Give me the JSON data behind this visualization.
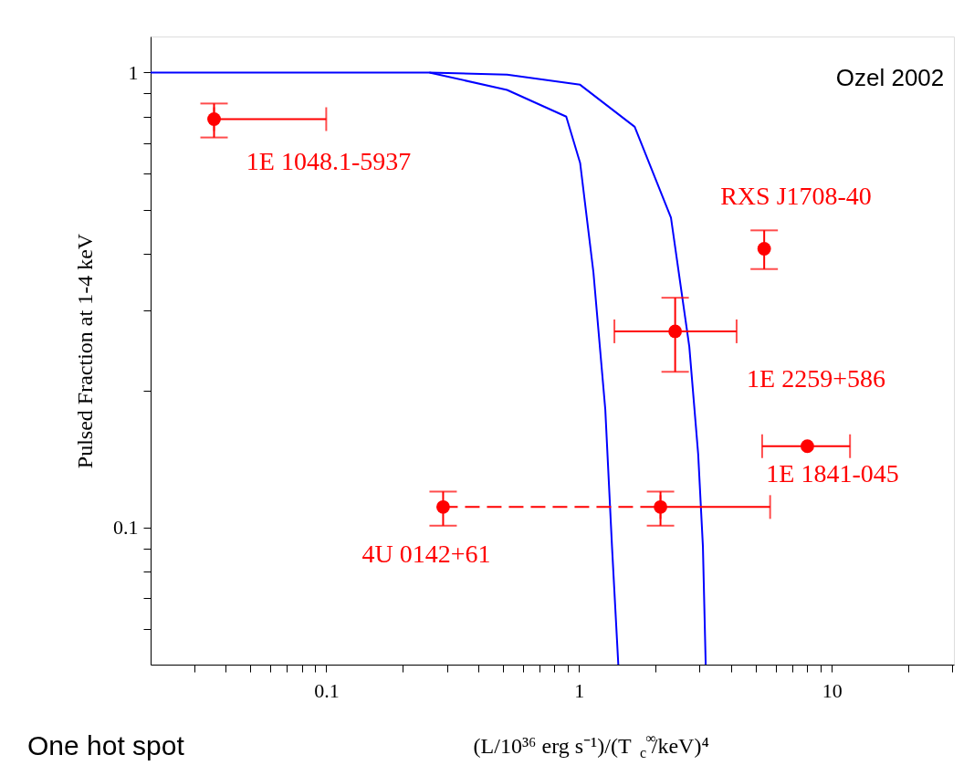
{
  "chart_data": {
    "type": "scatter",
    "xlabel": "(L/10³⁶ erg s⁻¹)/(T$_{c}$$^{∞}$/keV)⁴",
    "ylabel": "Pulsed Fraction at 1-4 keV",
    "log": "xy",
    "grid": false,
    "marker": "circle",
    "xlim": [
      0.0202,
      30.4
    ],
    "ylim": [
      0.05,
      1.2
    ],
    "xticks": [
      {
        "value": 0.03,
        "label": null
      },
      {
        "value": 0.04,
        "label": null
      },
      {
        "value": 0.05,
        "label": null
      },
      {
        "value": 0.06,
        "label": null
      },
      {
        "value": 0.07,
        "label": null
      },
      {
        "value": 0.08,
        "label": null
      },
      {
        "value": 0.09,
        "label": null
      },
      0.1,
      {
        "value": 0.2,
        "label": null
      },
      {
        "value": 0.3,
        "label": null
      },
      {
        "value": 0.4,
        "label": null
      },
      {
        "value": 0.5,
        "label": null
      },
      {
        "value": 0.6,
        "label": null
      },
      {
        "value": 0.7,
        "label": null
      },
      {
        "value": 0.8,
        "label": null
      },
      {
        "value": 0.9,
        "label": null
      },
      1,
      {
        "value": 2,
        "label": null
      },
      {
        "value": 3,
        "label": null
      },
      {
        "value": 4,
        "label": null
      },
      {
        "value": 5,
        "label": null
      },
      {
        "value": 6,
        "label": null
      },
      {
        "value": 7,
        "label": null
      },
      {
        "value": 8,
        "label": null
      },
      {
        "value": 9,
        "label": null
      },
      10,
      {
        "value": 20,
        "label": null
      },
      {
        "value": 30,
        "label": null
      }
    ],
    "yticks": [
      {
        "value": 0.06,
        "label": null
      },
      {
        "value": 0.07,
        "label": null
      },
      {
        "value": 0.08,
        "label": null
      },
      {
        "value": 0.09,
        "label": null
      },
      0.1,
      {
        "value": 0.2,
        "label": null
      },
      {
        "value": 0.3,
        "label": null
      },
      {
        "value": 0.4,
        "label": null
      },
      {
        "value": 0.5,
        "label": null
      },
      {
        "value": 0.6,
        "label": null
      },
      {
        "value": 0.7,
        "label": null
      },
      {
        "value": 0.8,
        "label": null
      },
      {
        "value": 0.9,
        "label": null
      },
      1
    ],
    "series": [
      {
        "type": "line",
        "color": "#0000ff",
        "line_style": "solid",
        "marker": "none",
        "x": [
          0.0202,
          0.256,
          0.519,
          0.89,
          1.01,
          1.14,
          1.27,
          1.35,
          1.43
        ],
        "values": [
          1,
          1,
          0.916,
          0.8,
          0.633,
          0.364,
          0.182,
          0.091,
          0.05
        ]
      },
      {
        "type": "line",
        "color": "#0000ff",
        "line_style": "solid",
        "marker": "none",
        "x": [
          0.256,
          0.519,
          1.01,
          1.66,
          2.31,
          2.73,
          2.96,
          3.09,
          3.17
        ],
        "values": [
          1,
          0.99,
          0.94,
          0.76,
          0.48,
          0.25,
          0.145,
          0.091,
          0.05
        ]
      },
      {
        "type": "line",
        "color": "#ff0000",
        "line_style": "dashed",
        "marker": "none",
        "x": [
          0.29,
          2.1
        ],
        "values": [
          0.111,
          0.111
        ]
      },
      {
        "type": "scatter",
        "color": "#ff0000",
        "x": [
          0.036,
          5.4,
          2.4,
          8.0,
          0.29,
          2.1
        ],
        "values": [
          0.79,
          0.41,
          0.27,
          0.151,
          0.111,
          0.111
        ],
        "errors": [
          [
            0.72,
            0.855
          ],
          [
            0.37,
            0.45
          ],
          [
            0.22,
            0.32
          ],
          null,
          [
            0.101,
            0.12
          ],
          [
            0.101,
            0.12
          ]
        ],
        "xerrors": [
          [
            0.036,
            0.1
          ],
          null,
          [
            1.38,
            4.2
          ],
          [
            5.3,
            11.8
          ],
          null,
          [
            2.1,
            5.7
          ]
        ]
      }
    ],
    "annotations": [
      "Ozel 2002",
      "One hot spot",
      "1E 1048.1-5937",
      "RXS J1708-40",
      "1E 2259+586",
      "1E 1841-045",
      "4U 0142+61"
    ]
  }
}
